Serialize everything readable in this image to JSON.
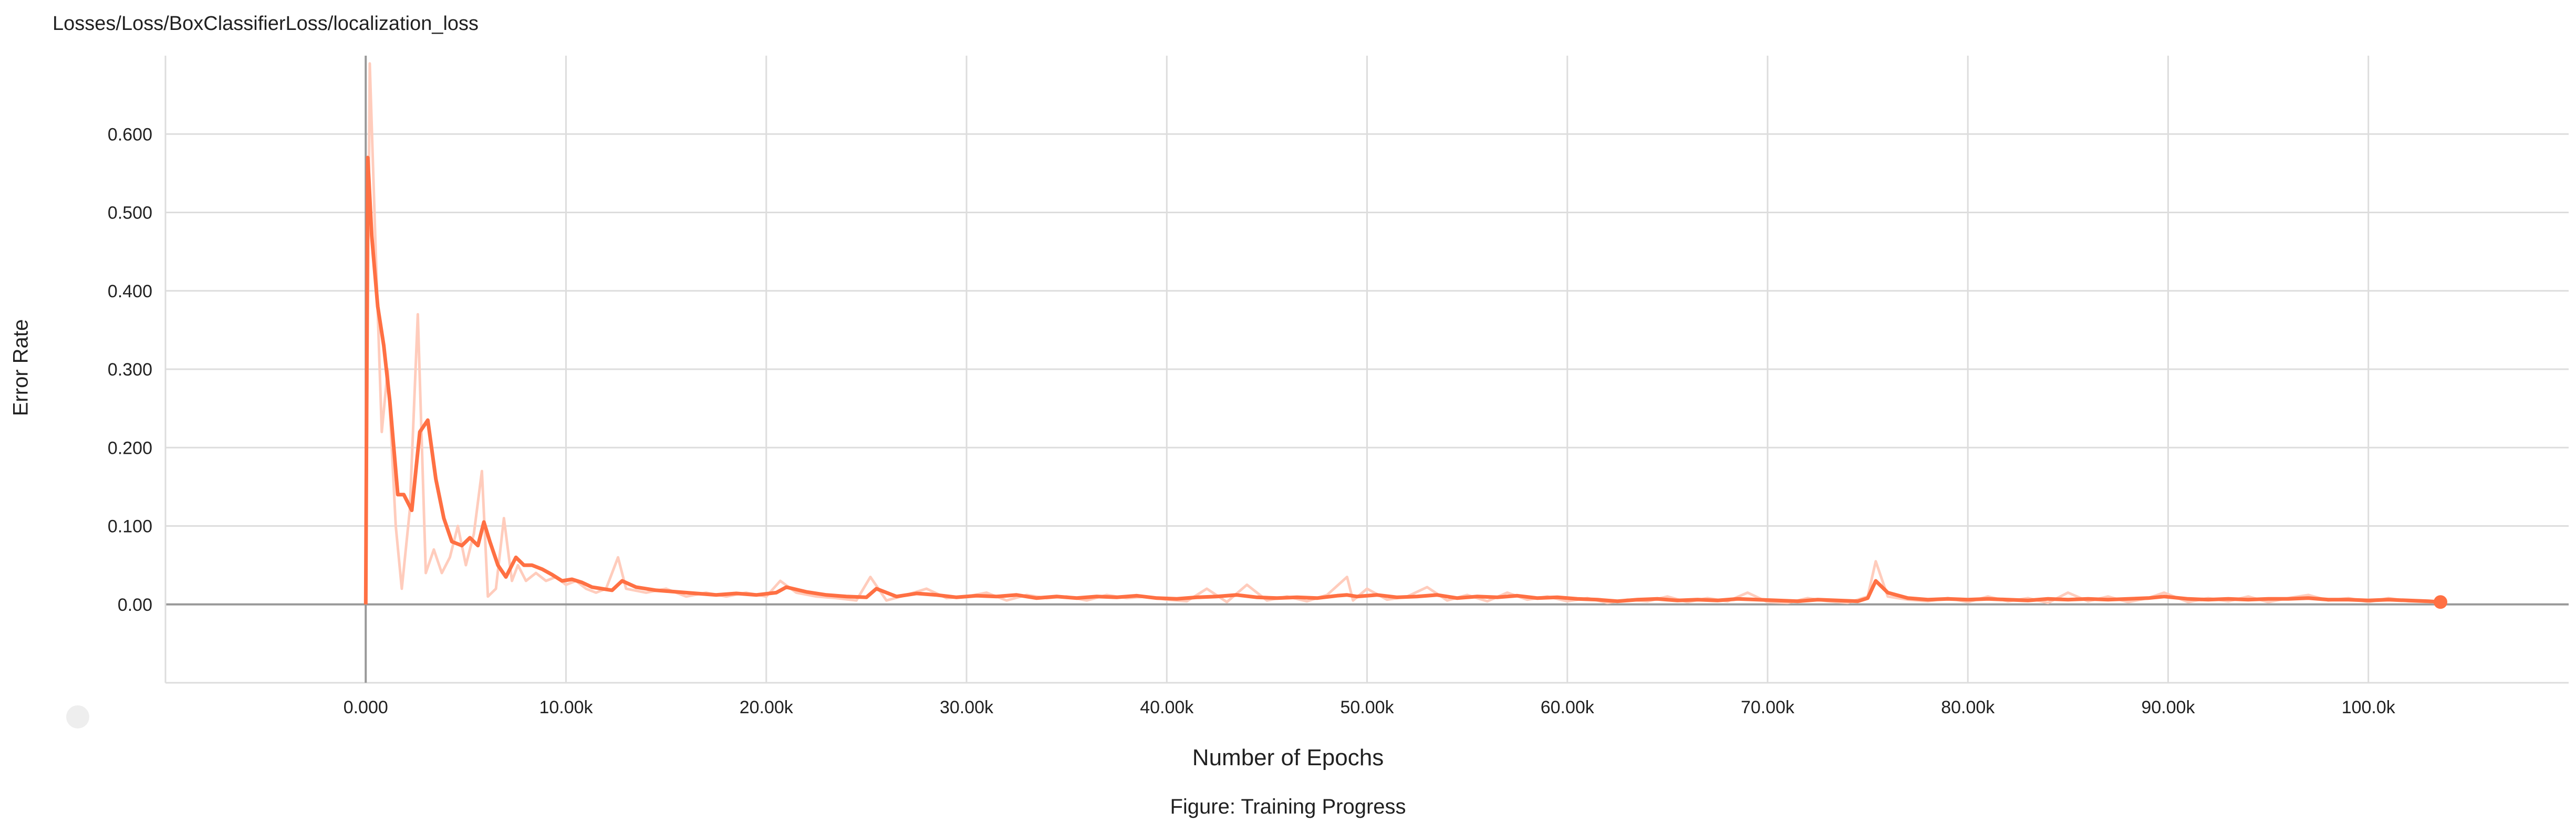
{
  "chart_data": {
    "type": "line",
    "title": "Losses/Loss/BoxClassifierLoss/localization_loss",
    "xlabel": "Number of Epochs",
    "ylabel": "Error Rate",
    "caption": "Figure: Training Progress",
    "xlim": [
      -10000,
      110000
    ],
    "ylim": [
      -0.1,
      0.7
    ],
    "x_ticks": [
      0,
      10000,
      20000,
      30000,
      40000,
      50000,
      60000,
      70000,
      80000,
      90000,
      100000
    ],
    "x_tick_labels": [
      "0.000",
      "10.00k",
      "20.00k",
      "30.00k",
      "40.00k",
      "50.00k",
      "60.00k",
      "70.00k",
      "80.00k",
      "90.00k",
      "100.0k"
    ],
    "y_ticks": [
      0,
      0.1,
      0.2,
      0.3,
      0.4,
      0.5,
      0.6
    ],
    "y_tick_labels": [
      "0.00",
      "0.100",
      "0.200",
      "0.300",
      "0.400",
      "0.500",
      "0.600"
    ],
    "grid": true,
    "colors": {
      "smoothed": "#ff7043",
      "raw": "#ffccbc",
      "grid": "#dddddd",
      "axis": "#999999"
    },
    "series": [
      {
        "style": "raw",
        "x": [
          0,
          200,
          500,
          800,
          1100,
          1500,
          1800,
          2200,
          2600,
          3000,
          3400,
          3800,
          4200,
          4600,
          5000,
          5400,
          5800,
          6100,
          6500,
          6900,
          7300,
          7600,
          8000,
          8500,
          9000,
          9500,
          10000,
          10500,
          11000,
          11500,
          12000,
          12600,
          13000,
          14000,
          15000,
          16000,
          17000,
          18000,
          19000,
          20000,
          20700,
          21500,
          22500,
          23500,
          24500,
          25200,
          26000,
          27000,
          28000,
          29000,
          30000,
          31000,
          32000,
          33000,
          34000,
          35000,
          36000,
          37000,
          38000,
          39000,
          40000,
          41000,
          42000,
          43000,
          44000,
          45000,
          46000,
          47000,
          48000,
          49000,
          49300,
          50000,
          51000,
          52000,
          53000,
          54000,
          55000,
          56000,
          57000,
          58000,
          59000,
          60000,
          61000,
          62000,
          63000,
          64000,
          65000,
          66000,
          67000,
          68000,
          69000,
          70000,
          71000,
          72000,
          73000,
          74000,
          75000,
          75400,
          76000,
          77000,
          78000,
          79000,
          80000,
          81000,
          82000,
          83000,
          84000,
          85000,
          86000,
          87000,
          88000,
          89000,
          89800,
          91000,
          92000,
          93000,
          94000,
          95000,
          96000,
          97000,
          98000,
          99000,
          100000,
          101000,
          102000,
          103000,
          103600
        ],
        "y": [
          0.0,
          0.69,
          0.45,
          0.22,
          0.3,
          0.1,
          0.02,
          0.12,
          0.37,
          0.04,
          0.07,
          0.04,
          0.06,
          0.1,
          0.05,
          0.09,
          0.17,
          0.01,
          0.02,
          0.11,
          0.03,
          0.05,
          0.03,
          0.04,
          0.03,
          0.035,
          0.025,
          0.03,
          0.02,
          0.015,
          0.02,
          0.06,
          0.02,
          0.015,
          0.02,
          0.01,
          0.015,
          0.01,
          0.015,
          0.01,
          0.03,
          0.015,
          0.01,
          0.008,
          0.005,
          0.035,
          0.005,
          0.012,
          0.02,
          0.008,
          0.01,
          0.015,
          0.005,
          0.012,
          0.008,
          0.01,
          0.005,
          0.012,
          0.008,
          0.01,
          0.006,
          0.004,
          0.02,
          0.003,
          0.025,
          0.005,
          0.01,
          0.004,
          0.012,
          0.035,
          0.005,
          0.02,
          0.006,
          0.01,
          0.022,
          0.005,
          0.012,
          0.004,
          0.015,
          0.006,
          0.01,
          0.004,
          0.008,
          0.002,
          0.006,
          0.004,
          0.01,
          0.003,
          0.008,
          0.004,
          0.015,
          0.003,
          0.002,
          0.008,
          0.004,
          0.002,
          0.01,
          0.055,
          0.01,
          0.006,
          0.004,
          0.008,
          0.003,
          0.01,
          0.004,
          0.008,
          0.002,
          0.015,
          0.004,
          0.01,
          0.003,
          0.008,
          0.015,
          0.003,
          0.008,
          0.004,
          0.01,
          0.003,
          0.008,
          0.012,
          0.005,
          0.008,
          0.003,
          0.008,
          0.004,
          0.003,
          0.002
        ]
      },
      {
        "style": "smoothed",
        "x": [
          0,
          100,
          300,
          600,
          900,
          1200,
          1600,
          1900,
          2300,
          2700,
          3100,
          3500,
          3900,
          4300,
          4800,
          5200,
          5600,
          5900,
          6200,
          6600,
          7000,
          7500,
          7900,
          8300,
          8800,
          9300,
          9800,
          10300,
          10800,
          11300,
          11800,
          12300,
          12800,
          13500,
          14500,
          15500,
          16500,
          17500,
          18500,
          19500,
          20500,
          21000,
          22000,
          23000,
          24000,
          25000,
          25500,
          26500,
          27500,
          28500,
          29500,
          30500,
          31500,
          32500,
          33500,
          34500,
          35500,
          36500,
          37500,
          38500,
          39500,
          40500,
          41500,
          42500,
          43500,
          44500,
          45500,
          46500,
          47500,
          48500,
          49000,
          49500,
          50500,
          51500,
          52500,
          53500,
          54500,
          55500,
          56500,
          57500,
          58500,
          59500,
          60500,
          61500,
          62500,
          63500,
          64500,
          65500,
          66500,
          67500,
          68500,
          69500,
          70500,
          71500,
          72500,
          73500,
          74500,
          75000,
          75400,
          76000,
          77000,
          78000,
          79000,
          80000,
          81000,
          82000,
          83000,
          84000,
          85000,
          86000,
          87000,
          88000,
          89000,
          89800,
          91000,
          92000,
          93000,
          94000,
          95000,
          96000,
          97000,
          98000,
          99000,
          100000,
          101000,
          102000,
          103000,
          103600
        ],
        "y": [
          0.0,
          0.57,
          0.47,
          0.38,
          0.33,
          0.26,
          0.14,
          0.14,
          0.12,
          0.22,
          0.235,
          0.16,
          0.11,
          0.08,
          0.075,
          0.085,
          0.075,
          0.105,
          0.08,
          0.05,
          0.035,
          0.06,
          0.05,
          0.05,
          0.045,
          0.038,
          0.03,
          0.032,
          0.028,
          0.022,
          0.02,
          0.018,
          0.03,
          0.022,
          0.018,
          0.016,
          0.014,
          0.012,
          0.014,
          0.012,
          0.015,
          0.022,
          0.016,
          0.012,
          0.01,
          0.009,
          0.02,
          0.01,
          0.014,
          0.012,
          0.009,
          0.011,
          0.01,
          0.012,
          0.008,
          0.01,
          0.008,
          0.01,
          0.009,
          0.011,
          0.008,
          0.007,
          0.009,
          0.01,
          0.012,
          0.009,
          0.008,
          0.009,
          0.008,
          0.011,
          0.012,
          0.01,
          0.012,
          0.009,
          0.01,
          0.012,
          0.008,
          0.01,
          0.009,
          0.011,
          0.008,
          0.009,
          0.007,
          0.006,
          0.004,
          0.006,
          0.007,
          0.005,
          0.006,
          0.005,
          0.007,
          0.006,
          0.005,
          0.004,
          0.006,
          0.005,
          0.004,
          0.008,
          0.03,
          0.015,
          0.008,
          0.006,
          0.007,
          0.006,
          0.007,
          0.006,
          0.005,
          0.007,
          0.006,
          0.007,
          0.006,
          0.007,
          0.008,
          0.01,
          0.007,
          0.006,
          0.007,
          0.006,
          0.007,
          0.007,
          0.008,
          0.006,
          0.006,
          0.005,
          0.006,
          0.005,
          0.004,
          0.003
        ]
      }
    ]
  }
}
